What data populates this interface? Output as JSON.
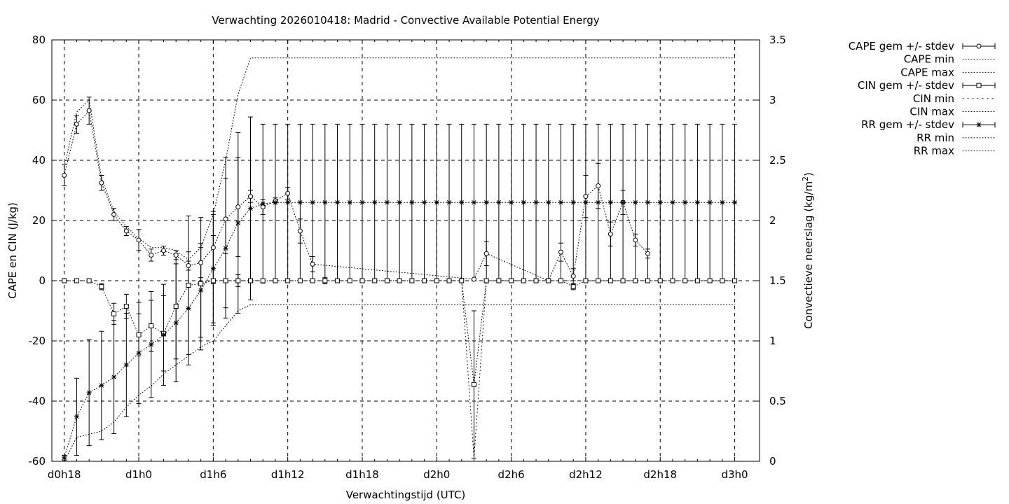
{
  "chart_data": {
    "type": "line",
    "title": "Verwachting 2026010418: Madrid - Convective Available Potential Energy",
    "xlabel": "Verwachtingstijd (UTC)",
    "ylabel": "CAPE en CIN (J/kg)",
    "y2label_main": "Convectieve neerslag (kg/m",
    "y2label_sup": "2",
    "y2label_end": ")",
    "xlim": [
      -1,
      56
    ],
    "ylim": [
      -60,
      80
    ],
    "y2lim": [
      0,
      3.5
    ],
    "grid": true,
    "legend_position": "right",
    "x_ticks": [
      {
        "x": 0,
        "label": "d0h18"
      },
      {
        "x": 6,
        "label": "d1h0"
      },
      {
        "x": 12,
        "label": "d1h6"
      },
      {
        "x": 18,
        "label": "d1h12"
      },
      {
        "x": 24,
        "label": "d1h18"
      },
      {
        "x": 30,
        "label": "d2h0"
      },
      {
        "x": 36,
        "label": "d2h6"
      },
      {
        "x": 42,
        "label": "d2h12"
      },
      {
        "x": 48,
        "label": "d2h18"
      },
      {
        "x": 54,
        "label": "d3h0"
      }
    ],
    "y_ticks": [
      "-60",
      "-40",
      "-20",
      "0",
      "20",
      "40",
      "60",
      "80"
    ],
    "y2_ticks": [
      "0",
      "0.5",
      "1",
      "1.5",
      "2",
      "2.5",
      "3",
      "3.5"
    ],
    "legend": [
      {
        "label": "CAPE gem +/- stdev",
        "style": "errorbar",
        "marker": "circle"
      },
      {
        "label": "CAPE min",
        "style": "dotted"
      },
      {
        "label": "CAPE max",
        "style": "dotted"
      },
      {
        "label": "CIN gem +/- stdev",
        "style": "errorbar",
        "marker": "square"
      },
      {
        "label": "CIN min",
        "style": "dotted-coarse"
      },
      {
        "label": "CIN max",
        "style": "dotted"
      },
      {
        "label": "RR gem +/- stdev",
        "style": "errorbar",
        "marker": "star"
      },
      {
        "label": "RR min",
        "style": "dotted"
      },
      {
        "label": "RR max",
        "style": "dotted"
      }
    ],
    "series": [
      {
        "name": "CAPE gem +/- stdev",
        "axis": "y1",
        "x": [
          0,
          1,
          2,
          3,
          4,
          5,
          6,
          7,
          8,
          9,
          10,
          11,
          12,
          13,
          14,
          15,
          16,
          17,
          18,
          19,
          20,
          33,
          34,
          39,
          40,
          41,
          42,
          43,
          44,
          45,
          46,
          47
        ],
        "y": [
          35,
          52,
          56.5,
          32.5,
          22,
          16.5,
          13.5,
          8.5,
          10,
          8.5,
          5,
          6,
          11,
          20.5,
          24.5,
          28,
          24.5,
          26.5,
          29,
          16.5,
          5.5,
          0.5,
          9,
          0,
          9.5,
          1.5,
          28,
          31.5,
          15.5,
          26,
          13.5,
          9
        ],
        "yerr": [
          3.5,
          3,
          4.5,
          2.5,
          2,
          1.5,
          3.5,
          2,
          1.5,
          1.5,
          1.5,
          5,
          12,
          20.5,
          16.5,
          2,
          2.5,
          1,
          2,
          4,
          2.5,
          0,
          4,
          0,
          3,
          2.5,
          7,
          7.5,
          4,
          4,
          2,
          1.5
        ]
      },
      {
        "name": "CIN gem +/- stdev",
        "axis": "y1",
        "x": [
          0,
          1,
          2,
          3,
          4,
          5,
          6,
          7,
          8,
          9,
          10,
          11,
          12,
          13,
          14,
          15,
          16,
          17,
          18,
          19,
          20,
          21,
          22,
          23,
          24,
          25,
          26,
          27,
          28,
          29,
          30,
          31,
          32,
          33,
          34,
          35,
          36,
          37,
          38,
          39,
          40,
          41,
          42,
          43,
          44,
          45,
          46,
          47,
          48,
          49,
          50,
          51,
          52,
          53,
          54
        ],
        "y": [
          0,
          0,
          0,
          -2,
          -11,
          -8.5,
          -18,
          -15,
          -17.5,
          -8.5,
          -1.5,
          -1,
          0,
          0,
          0,
          0,
          0,
          0,
          0,
          0,
          0,
          0,
          0,
          0,
          0,
          0,
          0,
          0,
          0,
          0,
          0,
          0,
          0,
          -34.5,
          0,
          0,
          0,
          0,
          0,
          0,
          0,
          -2,
          0,
          0,
          0,
          0,
          0,
          0,
          0,
          0,
          0,
          0,
          0,
          0,
          0
        ],
        "yerr": [
          0,
          0,
          0,
          1,
          3.5,
          4,
          7,
          8.5,
          12.5,
          17.5,
          23,
          22,
          15,
          9,
          2,
          0,
          0,
          0,
          0,
          0,
          0,
          1,
          0,
          0,
          0,
          0,
          0,
          0,
          0,
          0,
          0,
          0,
          0,
          24.5,
          0,
          0,
          0,
          0,
          0,
          0,
          0,
          1,
          0,
          0,
          0,
          0,
          0,
          0,
          0,
          0,
          0,
          0,
          0,
          0,
          0
        ]
      },
      {
        "name": "RR gem +/- stdev",
        "axis": "y2",
        "x": [
          0,
          1,
          2,
          3,
          4,
          5,
          6,
          7,
          8,
          9,
          10,
          11,
          12,
          13,
          14,
          15,
          16,
          17,
          18,
          19,
          20,
          21,
          22,
          23,
          24,
          25,
          26,
          27,
          28,
          29,
          30,
          31,
          32,
          33,
          34,
          35,
          36,
          37,
          38,
          39,
          40,
          41,
          42,
          43,
          44,
          45,
          46,
          47,
          48,
          49,
          50,
          51,
          52,
          53,
          54
        ],
        "y": [
          0.03,
          0.37,
          0.57,
          0.63,
          0.7,
          0.8,
          0.9,
          0.97,
          1.05,
          1.15,
          1.27,
          1.42,
          1.6,
          1.77,
          1.98,
          2.1,
          2.14,
          2.15,
          2.15,
          2.15,
          2.15,
          2.15,
          2.15,
          2.15,
          2.15,
          2.15,
          2.15,
          2.15,
          2.15,
          2.15,
          2.15,
          2.15,
          2.15,
          2.15,
          2.15,
          2.15,
          2.15,
          2.15,
          2.15,
          2.15,
          2.15,
          2.15,
          2.15,
          2.15,
          2.15,
          2.15,
          2.15,
          2.15,
          2.15,
          2.15,
          2.15,
          2.15,
          2.15,
          2.15,
          2.15
        ],
        "yerr": [
          0.02,
          0.32,
          0.44,
          0.45,
          0.47,
          0.43,
          0.42,
          0.44,
          0.42,
          0.49,
          0.47,
          0.39,
          0.45,
          0.58,
          0.75,
          0.76,
          0.66,
          0.65,
          0.65,
          0.65,
          0.65,
          0.65,
          0.65,
          0.65,
          0.65,
          0.65,
          0.65,
          0.65,
          0.65,
          0.65,
          0.65,
          0.65,
          0.65,
          0.65,
          0.65,
          0.65,
          0.65,
          0.65,
          0.65,
          0.65,
          0.65,
          0.65,
          0.65,
          0.65,
          0.65,
          0.65,
          0.65,
          0.65,
          0.65,
          0.65,
          0.65,
          0.65,
          0.65,
          0.65,
          0.65
        ]
      },
      {
        "name": "CAPE max",
        "axis": "y1",
        "x": [
          0,
          1,
          2,
          3,
          4,
          5,
          6,
          7,
          8,
          9,
          10,
          11,
          12,
          13,
          14,
          15,
          16,
          17,
          18,
          54
        ],
        "y": [
          38,
          56,
          60,
          34,
          23,
          18,
          14,
          11,
          11,
          10,
          7,
          11,
          22,
          40,
          62,
          74,
          74,
          74,
          74,
          74
        ]
      },
      {
        "name": "CAPE min",
        "axis": "y1",
        "x": [
          0,
          1,
          2,
          3,
          4,
          5,
          6,
          7,
          8,
          9,
          10,
          11,
          12,
          13,
          14,
          15,
          16,
          17,
          18,
          54
        ],
        "y": [
          -60,
          -52,
          -51,
          -50,
          -47,
          -42,
          -38,
          -35,
          -31,
          -28,
          -25,
          -22,
          -20,
          -15,
          -10,
          -8,
          -8,
          -8,
          -8,
          -8
        ]
      },
      {
        "name": "CIN min",
        "axis": "y1",
        "x": [
          30,
          31,
          32,
          33,
          34,
          35,
          36,
          54
        ],
        "y": [
          0,
          0,
          0,
          -59,
          0,
          0,
          0,
          0
        ]
      }
    ]
  }
}
